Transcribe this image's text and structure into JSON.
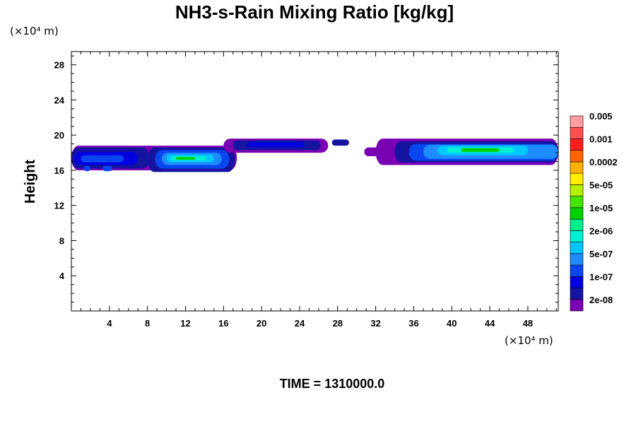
{
  "chart_data": {
    "type": "heatmap",
    "title": "NH3-s-Rain Mixing Ratio [kg/kg]",
    "ylabel": "Height",
    "x_unit": "(×10⁴ m)",
    "y_unit": "(×10⁴ m)",
    "xlim": [
      0,
      51.2
    ],
    "ylim": [
      0,
      29.5
    ],
    "xticks": [
      4,
      8,
      12,
      16,
      20,
      24,
      28,
      32,
      36,
      40,
      44,
      48
    ],
    "yticks": [
      4,
      8,
      12,
      16,
      20,
      24,
      28
    ],
    "xtick_labels": [
      "4",
      "8",
      "12",
      "16",
      "20",
      "24",
      "28",
      "32",
      "36",
      "40",
      "44",
      "48"
    ],
    "ytick_labels": [
      "4",
      "8",
      "12",
      "16",
      "20",
      "24",
      "28"
    ],
    "time_label": "TIME = 1310000.0",
    "colorbar": {
      "colors": [
        "#7a00b4",
        "#1414a0",
        "#0000e0",
        "#0a46f0",
        "#1e8cff",
        "#00c8ff",
        "#00f0d2",
        "#00ee8c",
        "#00d200",
        "#44e600",
        "#b4f000",
        "#ffee00",
        "#ffb000",
        "#ff6400",
        "#ff1e1e",
        "#ff5050",
        "#ff9ea0"
      ],
      "labels": [
        "2e-08",
        "1e-07",
        "5e-07",
        "2e-06",
        "1e-05",
        "5e-05",
        "0.0002",
        "0.001",
        "0.005"
      ],
      "label_levels": [
        1,
        3,
        5,
        7,
        9,
        11,
        13,
        15,
        17
      ]
    },
    "regions": [
      {
        "x": [
          0.0,
          17.4
        ],
        "y": [
          16.0,
          18.8
        ],
        "level": 1
      },
      {
        "x": [
          0.0,
          8.2
        ],
        "y": [
          16.2,
          18.6
        ],
        "level": 2
      },
      {
        "x": [
          0.3,
          7.0
        ],
        "y": [
          16.6,
          18.1
        ],
        "level": 3
      },
      {
        "x": [
          1.0,
          5.5
        ],
        "y": [
          16.9,
          17.7
        ],
        "level": 4
      },
      {
        "x": [
          1.3,
          2.0
        ],
        "y": [
          15.9,
          16.5
        ],
        "level": 4
      },
      {
        "x": [
          3.3,
          4.3
        ],
        "y": [
          15.9,
          16.5
        ],
        "level": 4
      },
      {
        "x": [
          8.0,
          17.2
        ],
        "y": [
          15.8,
          18.6
        ],
        "level": 2
      },
      {
        "x": [
          8.8,
          16.6
        ],
        "y": [
          16.2,
          18.3
        ],
        "level": 4
      },
      {
        "x": [
          9.5,
          15.8
        ],
        "y": [
          16.6,
          18.0
        ],
        "level": 5
      },
      {
        "x": [
          10.0,
          15.0
        ],
        "y": [
          16.9,
          17.8
        ],
        "level": 6
      },
      {
        "x": [
          10.5,
          14.2
        ],
        "y": [
          17.1,
          17.6
        ],
        "level": 7
      },
      {
        "x": [
          11.0,
          13.0
        ],
        "y": [
          17.2,
          17.5
        ],
        "level": 9
      },
      {
        "x": [
          16.0,
          27.0
        ],
        "y": [
          18.0,
          19.6
        ],
        "level": 1
      },
      {
        "x": [
          17.0,
          26.2
        ],
        "y": [
          18.3,
          19.4
        ],
        "level": 2
      },
      {
        "x": [
          18.5,
          24.5
        ],
        "y": [
          18.6,
          19.2
        ],
        "level": 3
      },
      {
        "x": [
          27.4,
          29.2
        ],
        "y": [
          18.8,
          19.5
        ],
        "level": 2
      },
      {
        "x": [
          30.8,
          35.5
        ],
        "y": [
          17.6,
          18.6
        ],
        "level": 1
      },
      {
        "x": [
          32.0,
          51.2
        ],
        "y": [
          16.6,
          19.6
        ],
        "level": 1
      },
      {
        "x": [
          34.0,
          51.2
        ],
        "y": [
          16.9,
          19.3
        ],
        "level": 2
      },
      {
        "x": [
          35.5,
          51.2
        ],
        "y": [
          17.1,
          19.0
        ],
        "level": 4
      },
      {
        "x": [
          37.0,
          51.2
        ],
        "y": [
          17.3,
          18.9
        ],
        "level": 5
      },
      {
        "x": [
          38.5,
          48.0
        ],
        "y": [
          17.7,
          18.8
        ],
        "level": 6
      },
      {
        "x": [
          39.5,
          46.5
        ],
        "y": [
          18.0,
          18.6
        ],
        "level": 7
      },
      {
        "x": [
          41.0,
          45.0
        ],
        "y": [
          18.1,
          18.5
        ],
        "level": 9
      }
    ]
  }
}
